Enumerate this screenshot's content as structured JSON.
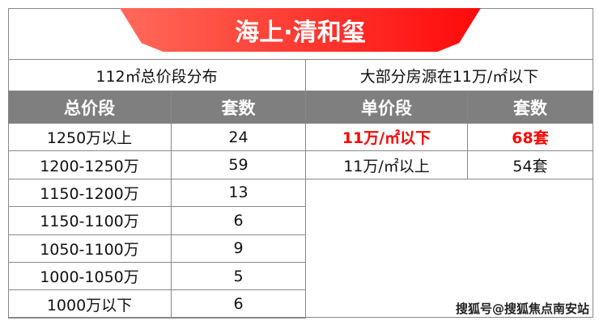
{
  "title": "海上·清和玺",
  "left": {
    "heading": "112㎡总价段分布",
    "columns": [
      "总价段",
      "套数"
    ],
    "rows": [
      [
        "1250万以上",
        "24"
      ],
      [
        "1200-1250万",
        "59"
      ],
      [
        "1150-1200万",
        "13"
      ],
      [
        "1150-1100万",
        "6"
      ],
      [
        "1050-1100万",
        "9"
      ],
      [
        "1000-1050万",
        "5"
      ],
      [
        "1000万以下",
        "6"
      ]
    ]
  },
  "right": {
    "heading": "大部分房源在11万/㎡以下",
    "columns": [
      "单价段",
      "套数"
    ],
    "rows": [
      [
        "11万/㎡以下",
        "68套"
      ],
      [
        "11万/㎡以上",
        "54套"
      ]
    ],
    "highlight_color": "#ff0000"
  },
  "watermark": "搜狐号@搜狐焦点南安站"
}
